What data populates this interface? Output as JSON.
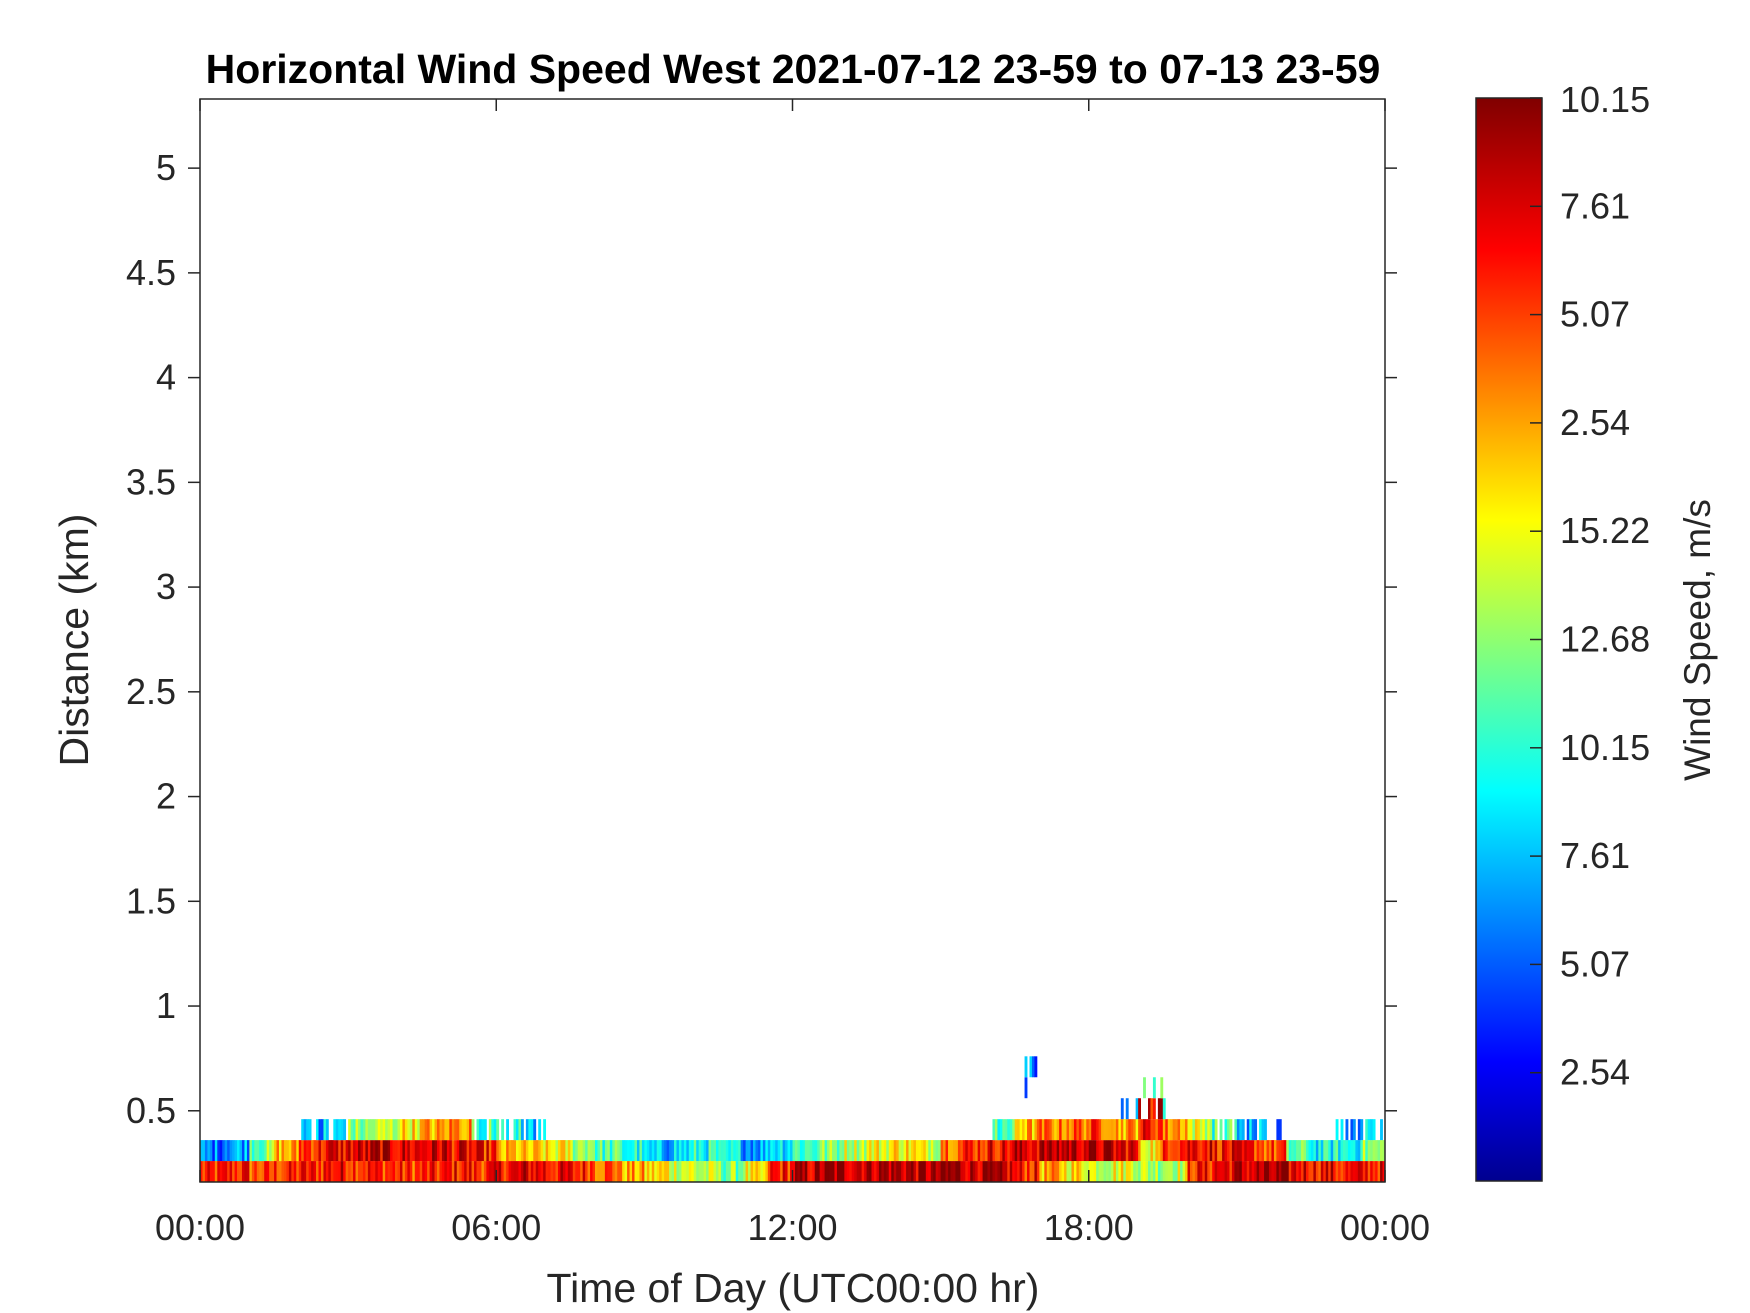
{
  "chart_data": {
    "type": "heatmap",
    "title": "Horizontal Wind Speed West 2021-07-12 23-59 to 07-13 23-59",
    "xlabel": "Time of Day (UTC00:00 hr)",
    "ylabel": "Distance (km)",
    "colorbar_label": "Wind Speed, m/s",
    "xlim_hours": [
      0,
      24
    ],
    "ylim": [
      0.16,
      5.33
    ],
    "x_ticks": [
      {
        "value": 0,
        "label": "00:00"
      },
      {
        "value": 6,
        "label": "06:00"
      },
      {
        "value": 12,
        "label": "12:00"
      },
      {
        "value": 18,
        "label": "18:00"
      },
      {
        "value": 24,
        "label": "00:00"
      }
    ],
    "y_ticks": [
      {
        "value": 0.5,
        "label": "0.5"
      },
      {
        "value": 1,
        "label": "1"
      },
      {
        "value": 1.5,
        "label": "1.5"
      },
      {
        "value": 2,
        "label": "2"
      },
      {
        "value": 2.5,
        "label": "2.5"
      },
      {
        "value": 3,
        "label": "3"
      },
      {
        "value": 3.5,
        "label": "3.5"
      },
      {
        "value": 4,
        "label": "4"
      },
      {
        "value": 4.5,
        "label": "4.5"
      },
      {
        "value": 5,
        "label": "5"
      }
    ],
    "colorbar_ticks": [
      {
        "level": 1.0,
        "label": "10.15"
      },
      {
        "level": 0.9,
        "label": "7.61"
      },
      {
        "level": 0.8,
        "label": "5.07"
      },
      {
        "level": 0.7,
        "label": "2.54"
      },
      {
        "level": 0.6,
        "label": "15.22"
      },
      {
        "level": 0.5,
        "label": "12.68"
      },
      {
        "level": 0.4,
        "label": "10.15"
      },
      {
        "level": 0.3,
        "label": "7.61"
      },
      {
        "level": 0.2,
        "label": "5.07"
      },
      {
        "level": 0.1,
        "label": "2.54"
      }
    ],
    "colormap": "jet",
    "gate_size_km": 0.1,
    "time_step_hours": 0.5,
    "gates": [
      {
        "bottom_km": 0.16,
        "levels": [
          0.82,
          0.85,
          0.8,
          0.83,
          0.85,
          0.88,
          0.86,
          0.84,
          0.82,
          0.83,
          0.86,
          0.84,
          0.88,
          0.9,
          0.87,
          0.85,
          0.8,
          0.7,
          0.65,
          0.6,
          0.55,
          0.5,
          0.6,
          0.85,
          0.92,
          0.95,
          0.95,
          0.96,
          0.95,
          0.94,
          0.96,
          0.95,
          0.9,
          0.85,
          0.7,
          0.65,
          0.6,
          0.62,
          0.55,
          0.58,
          0.85,
          0.9,
          0.92,
          0.93,
          0.9,
          0.88,
          0.85,
          0.87
        ]
      },
      {
        "bottom_km": 0.26,
        "levels": [
          0.25,
          0.3,
          0.5,
          0.7,
          0.85,
          0.88,
          0.9,
          0.92,
          0.9,
          0.92,
          0.88,
          0.85,
          0.68,
          0.65,
          0.62,
          0.55,
          0.45,
          0.4,
          0.3,
          0.35,
          0.4,
          0.35,
          0.3,
          0.38,
          0.45,
          0.5,
          0.58,
          0.62,
          0.65,
          0.6,
          0.8,
          0.85,
          0.88,
          0.92,
          0.94,
          0.95,
          0.93,
          0.9,
          0.65,
          0.88,
          0.9,
          0.86,
          0.84,
          0.8,
          0.45,
          0.38,
          0.4,
          0.5
        ]
      },
      {
        "bottom_km": 0.36,
        "levels": [
          null,
          null,
          null,
          null,
          0.3,
          0.32,
          0.5,
          0.55,
          0.65,
          0.7,
          0.75,
          0.45,
          0.4,
          0.3,
          null,
          null,
          null,
          null,
          null,
          null,
          null,
          null,
          null,
          null,
          null,
          null,
          null,
          null,
          null,
          null,
          null,
          null,
          0.45,
          0.7,
          0.75,
          0.78,
          0.8,
          0.72,
          0.85,
          0.75,
          0.6,
          0.45,
          0.3,
          0.25,
          null,
          null,
          0.3,
          0.35
        ]
      },
      {
        "bottom_km": 0.46,
        "levels": [
          null,
          null,
          null,
          null,
          null,
          null,
          null,
          null,
          null,
          null,
          null,
          null,
          null,
          null,
          null,
          null,
          null,
          null,
          null,
          null,
          null,
          null,
          null,
          null,
          null,
          null,
          null,
          null,
          null,
          null,
          null,
          null,
          null,
          null,
          null,
          null,
          null,
          0.3,
          0.88,
          0.45,
          null,
          null,
          null,
          null,
          null,
          null,
          null,
          null
        ]
      },
      {
        "bottom_km": 0.56,
        "levels": [
          null,
          null,
          null,
          null,
          null,
          null,
          null,
          null,
          null,
          null,
          null,
          null,
          null,
          null,
          null,
          null,
          null,
          null,
          null,
          null,
          null,
          null,
          null,
          null,
          null,
          null,
          null,
          null,
          null,
          null,
          null,
          null,
          null,
          0.25,
          null,
          null,
          null,
          null,
          0.45,
          null,
          null,
          null,
          null,
          null,
          null,
          null,
          null,
          null
        ]
      },
      {
        "bottom_km": 0.66,
        "levels": [
          null,
          null,
          null,
          null,
          null,
          null,
          null,
          null,
          null,
          null,
          null,
          null,
          null,
          null,
          null,
          null,
          null,
          null,
          null,
          null,
          null,
          null,
          null,
          null,
          null,
          null,
          null,
          null,
          null,
          null,
          null,
          null,
          null,
          0.25,
          null,
          null,
          null,
          null,
          null,
          null,
          null,
          null,
          null,
          null,
          null,
          null,
          null,
          null
        ]
      }
    ]
  }
}
